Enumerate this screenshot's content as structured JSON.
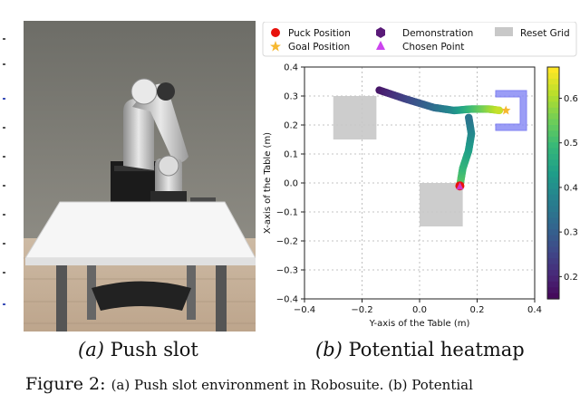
{
  "panel_a": {
    "label": "(a)",
    "caption": "Push slot"
  },
  "panel_b": {
    "label": "(b)",
    "caption": "Potential heatmap"
  },
  "figure_caption": {
    "prefix": "Figure 2:",
    "text": "(a) Push slot environment in Robosuite. (b) Potential"
  },
  "colors": {
    "puck": "#e8120c",
    "goal": "#f6b830",
    "demonstration": "#5a1a78",
    "chosen_point": "#cc44ee",
    "reset_grid": "#c8c8c8",
    "slot": "#8a8cf5"
  },
  "chart_data": {
    "type": "heatmap",
    "xlabel": "Y-axis of the Table (m)",
    "ylabel": "X-axis of the Table (m)",
    "xlim": [
      -0.4,
      0.4
    ],
    "ylim": [
      -0.4,
      0.4
    ],
    "xticks": [
      "−0.4",
      "−0.2",
      "0.0",
      "0.2",
      "0.4"
    ],
    "yticks": [
      "0.4",
      "0.3",
      "0.2",
      "0.1",
      "0.0",
      "−0.1",
      "−0.2",
      "−0.3",
      "−0.4"
    ],
    "grid": true,
    "legend": {
      "placement": "top",
      "entries": [
        {
          "name": "Puck Position",
          "marker": "circle",
          "color": "#e8120c"
        },
        {
          "name": "Demonstration",
          "marker": "hexagon",
          "color": "#5a1a78"
        },
        {
          "name": "Reset Grid",
          "marker": "square",
          "color": "#c8c8c8"
        },
        {
          "name": "Goal Position",
          "marker": "star",
          "color": "#f6b830"
        },
        {
          "name": "Chosen Point",
          "marker": "triangle",
          "color": "#cc44ee"
        }
      ]
    },
    "colorbar": {
      "range": [
        0.15,
        0.67
      ],
      "ticks": [
        "0.6",
        "0.5",
        "0.4",
        "0.3",
        "0.2"
      ],
      "colormap": "viridis"
    },
    "reset_grid": [
      {
        "y_range": [
          -0.3,
          -0.15
        ],
        "x_range": [
          0.15,
          0.3
        ]
      },
      {
        "y_range": [
          0.0,
          0.15
        ],
        "x_range": [
          -0.15,
          0.0
        ]
      }
    ],
    "puck_position": {
      "y": 0.14,
      "x": -0.01
    },
    "goal_position": {
      "y": 0.3,
      "x": 0.25
    },
    "demonstration_paths": [
      {
        "points": [
          [
            -0.14,
            0.32
          ],
          [
            -0.05,
            0.29
          ],
          [
            0.05,
            0.26
          ],
          [
            0.12,
            0.25
          ],
          [
            0.18,
            0.255
          ],
          [
            0.24,
            0.255
          ],
          [
            0.28,
            0.25
          ]
        ],
        "values": [
          0.18,
          0.25,
          0.33,
          0.4,
          0.5,
          0.58,
          0.63
        ]
      },
      {
        "points": [
          [
            0.14,
            -0.01
          ],
          [
            0.15,
            0.05
          ],
          [
            0.17,
            0.11
          ],
          [
            0.18,
            0.17
          ],
          [
            0.17,
            0.23
          ]
        ],
        "values": [
          0.55,
          0.5,
          0.45,
          0.4,
          0.35
        ]
      }
    ]
  }
}
